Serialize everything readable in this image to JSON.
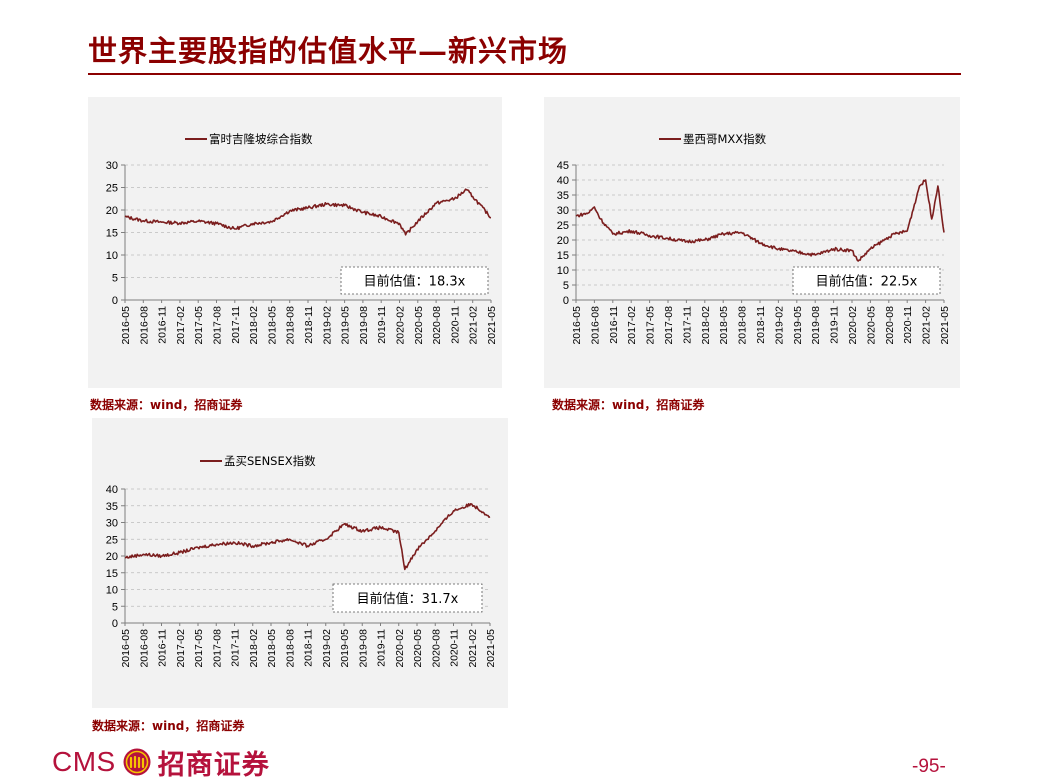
{
  "page": {
    "title": "世界主要股指的估值水平—新兴市场",
    "page_number": "-95-"
  },
  "logo": {
    "text": "CMS",
    "cn_name": "招商证券",
    "emblem": "cms-emblem-icon"
  },
  "chart_data": [
    {
      "type": "line",
      "legend": "富时吉隆坡综合指数",
      "ylim": [
        0,
        30
      ],
      "yticks": [
        0,
        5,
        10,
        15,
        20,
        25,
        30
      ],
      "xticks": [
        "2016-05",
        "2016-08",
        "2016-11",
        "2017-02",
        "2017-05",
        "2017-08",
        "2017-11",
        "2018-02",
        "2018-05",
        "2018-08",
        "2018-11",
        "2019-02",
        "2019-05",
        "2019-08",
        "2019-11",
        "2020-02",
        "2020-05",
        "2020-08",
        "2020-11",
        "2021-02",
        "2021-05"
      ],
      "grid": true,
      "legend_position": "top-center",
      "annotation": "目前估值：18.3x",
      "source": "数据来源：wind，招商证券",
      "color": "#7b1e1e",
      "series": [
        {
          "x": [
            "2016-05",
            "2016-08",
            "2016-11",
            "2017-02",
            "2017-05",
            "2017-08",
            "2017-11",
            "2018-02",
            "2018-05",
            "2018-08",
            "2018-11",
            "2019-02",
            "2019-05",
            "2019-08",
            "2019-11",
            "2020-02",
            "2020-03",
            "2020-05",
            "2020-08",
            "2020-11",
            "2021-01",
            "2021-02",
            "2021-05"
          ],
          "values": [
            18.5,
            17.6,
            17.3,
            17.1,
            17.5,
            17.0,
            15.8,
            17.0,
            17.4,
            19.8,
            20.5,
            21.3,
            21.0,
            19.5,
            18.5,
            17.0,
            14.5,
            17.5,
            21.5,
            22.5,
            24.5,
            23.0,
            18.3
          ]
        }
      ]
    },
    {
      "type": "line",
      "legend": "墨西哥MXX指数",
      "ylim": [
        0,
        45
      ],
      "yticks": [
        0,
        5,
        10,
        15,
        20,
        25,
        30,
        35,
        40,
        45
      ],
      "xticks": [
        "2016-05",
        "2016-08",
        "2016-11",
        "2017-02",
        "2017-05",
        "2017-08",
        "2017-11",
        "2018-02",
        "2018-05",
        "2018-08",
        "2018-11",
        "2019-02",
        "2019-05",
        "2019-08",
        "2019-11",
        "2020-02",
        "2020-05",
        "2020-08",
        "2020-11",
        "2021-02",
        "2021-05"
      ],
      "grid": true,
      "legend_position": "top-center",
      "annotation": "目前估值：22.5x",
      "source": "数据来源：wind，招商证券",
      "color": "#7b1e1e",
      "series": [
        {
          "x": [
            "2016-05",
            "2016-07",
            "2016-08",
            "2016-09",
            "2016-11",
            "2017-02",
            "2017-05",
            "2017-08",
            "2017-11",
            "2018-02",
            "2018-05",
            "2018-08",
            "2018-11",
            "2019-02",
            "2019-05",
            "2019-08",
            "2019-11",
            "2020-02",
            "2020-03",
            "2020-05",
            "2020-08",
            "2020-09",
            "2020-11",
            "2021-01",
            "2021-02",
            "2021-03",
            "2021-04",
            "2021-05"
          ],
          "values": [
            28,
            29,
            31,
            27,
            22,
            23,
            21.5,
            20.5,
            19.5,
            20,
            22,
            22.5,
            19,
            17,
            16,
            15,
            17,
            16.5,
            13,
            17,
            21,
            22,
            23,
            38,
            40,
            27,
            38,
            22.5
          ]
        }
      ]
    },
    {
      "type": "line",
      "legend": "孟买SENSEX指数",
      "ylim": [
        0,
        40
      ],
      "yticks": [
        0,
        5,
        10,
        15,
        20,
        25,
        30,
        35,
        40
      ],
      "xticks": [
        "2016-05",
        "2016-08",
        "2016-11",
        "2017-02",
        "2017-05",
        "2017-08",
        "2017-11",
        "2018-02",
        "2018-05",
        "2018-08",
        "2018-11",
        "2019-02",
        "2019-05",
        "2019-08",
        "2019-11",
        "2020-02",
        "2020-05",
        "2020-08",
        "2020-11",
        "2021-02",
        "2021-05"
      ],
      "grid": true,
      "legend_position": "top-center",
      "annotation": "目前估值：31.7x",
      "source": "数据来源：wind，招商证券",
      "color": "#7b1e1e",
      "series": [
        {
          "x": [
            "2016-05",
            "2016-08",
            "2016-11",
            "2017-02",
            "2017-05",
            "2017-08",
            "2017-11",
            "2018-02",
            "2018-05",
            "2018-08",
            "2018-11",
            "2019-02",
            "2019-05",
            "2019-08",
            "2019-11",
            "2020-02",
            "2020-03",
            "2020-05",
            "2020-08",
            "2020-11",
            "2021-02",
            "2021-05"
          ],
          "values": [
            19.5,
            20.5,
            20.0,
            21.0,
            22.5,
            23.5,
            24.0,
            23.0,
            24.0,
            25.0,
            23.0,
            25.0,
            29.5,
            27.5,
            28.5,
            27.0,
            16.0,
            22.0,
            27.5,
            33.5,
            35.5,
            31.7
          ]
        }
      ]
    }
  ]
}
